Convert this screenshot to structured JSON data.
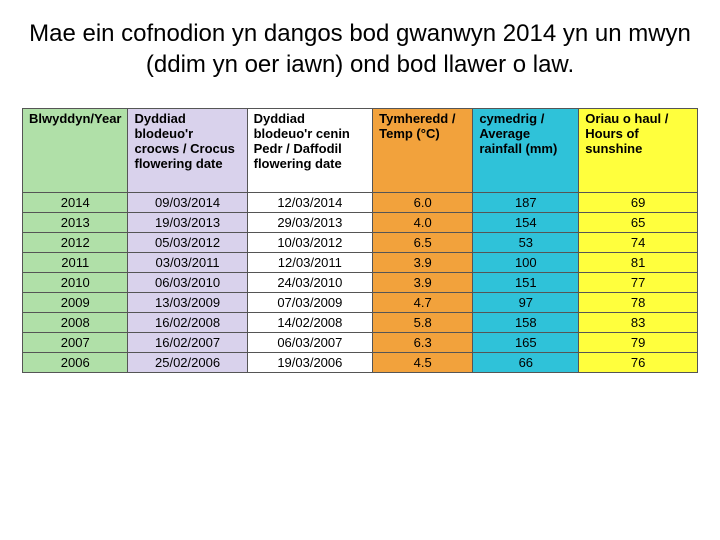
{
  "title": "Mae ein cofnodion yn dangos bod gwanwyn 2014 yn un mwyn (ddim yn oer iawn) ond bod llawer o law.",
  "table": {
    "columns": [
      {
        "label": "Blwyddyn/Year",
        "bg": "#b0e0a8",
        "width": "14%"
      },
      {
        "label": "Dyddiad blodeuo'r crocws / Crocus flowering date",
        "bg": "#d9d2ec",
        "width": "18%"
      },
      {
        "label": "Dyddiad blodeuo'r cenin Pedr / Daffodil flowering date",
        "bg": "#ffffff",
        "width": "19%"
      },
      {
        "label": "Tymheredd / Temp (°C)",
        "bg": "#f2a23c",
        "width": "15%"
      },
      {
        "label": "cymedrig / Average rainfall (mm)",
        "bg": "#2fc2d9",
        "width": "16%"
      },
      {
        "label": "Oriau o haul / Hours of sunshine",
        "bg": "#ffff3d",
        "width": "18%"
      }
    ],
    "rows": [
      {
        "year": "2014",
        "crocus": "09/03/2014",
        "daffodil": "12/03/2014",
        "temp": "6.0",
        "rain": "187",
        "sun": "69"
      },
      {
        "year": "2013",
        "crocus": "19/03/2013",
        "daffodil": "29/03/2013",
        "temp": "4.0",
        "rain": "154",
        "sun": "65"
      },
      {
        "year": "2012",
        "crocus": "05/03/2012",
        "daffodil": "10/03/2012",
        "temp": "6.5",
        "rain": "53",
        "sun": "74"
      },
      {
        "year": "2011",
        "crocus": "03/03/2011",
        "daffodil": "12/03/2011",
        "temp": "3.9",
        "rain": "100",
        "sun": "81"
      },
      {
        "year": "2010",
        "crocus": "06/03/2010",
        "daffodil": "24/03/2010",
        "temp": "3.9",
        "rain": "151",
        "sun": "77"
      },
      {
        "year": "2009",
        "crocus": "13/03/2009",
        "daffodil": "07/03/2009",
        "temp": "4.7",
        "rain": "97",
        "sun": "78"
      },
      {
        "year": "2008",
        "crocus": "16/02/2008",
        "daffodil": "14/02/2008",
        "temp": "5.8",
        "rain": "158",
        "sun": "83"
      },
      {
        "year": "2007",
        "crocus": "16/02/2007",
        "daffodil": "06/03/2007",
        "temp": "6.3",
        "rain": "165",
        "sun": "79"
      },
      {
        "year": "2006",
        "crocus": "25/02/2006",
        "daffodil": "19/03/2006",
        "temp": "4.5",
        "rain": "66",
        "sun": "76"
      }
    ]
  }
}
